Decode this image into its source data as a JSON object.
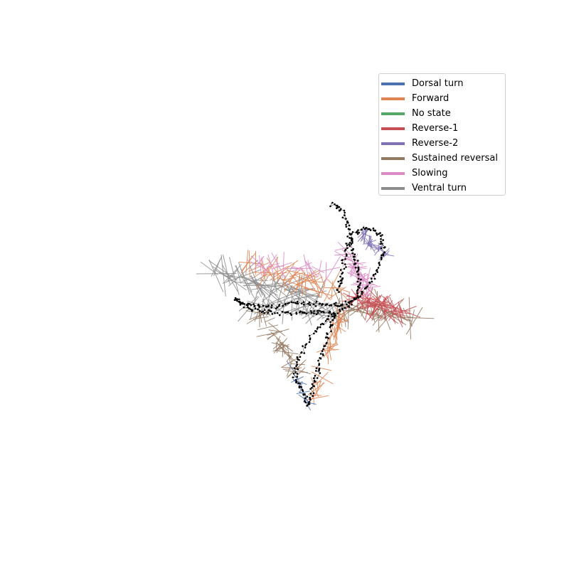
{
  "chart_data": {
    "type": "scatter",
    "title": "",
    "xlabel": "",
    "ylabel": "",
    "axes_visible": false,
    "grid": false,
    "legend_placement": "upper-right",
    "description_kind": "phase-plot trajectory with state-colored projection lines",
    "point_color": "#000000",
    "series": [
      {
        "name": "Dorsal turn",
        "color": "#4c72b0"
      },
      {
        "name": "Forward",
        "color": "#dd8452"
      },
      {
        "name": "No state",
        "color": "#55a868"
      },
      {
        "name": "Reverse-1",
        "color": "#c44e52"
      },
      {
        "name": "Reverse-2",
        "color": "#8172b3"
      },
      {
        "name": "Sustained reversal",
        "color": "#937860"
      },
      {
        "name": "Slowing",
        "color": "#da8bc3"
      },
      {
        "name": "Ventral turn",
        "color": "#8c8c8c"
      }
    ]
  }
}
